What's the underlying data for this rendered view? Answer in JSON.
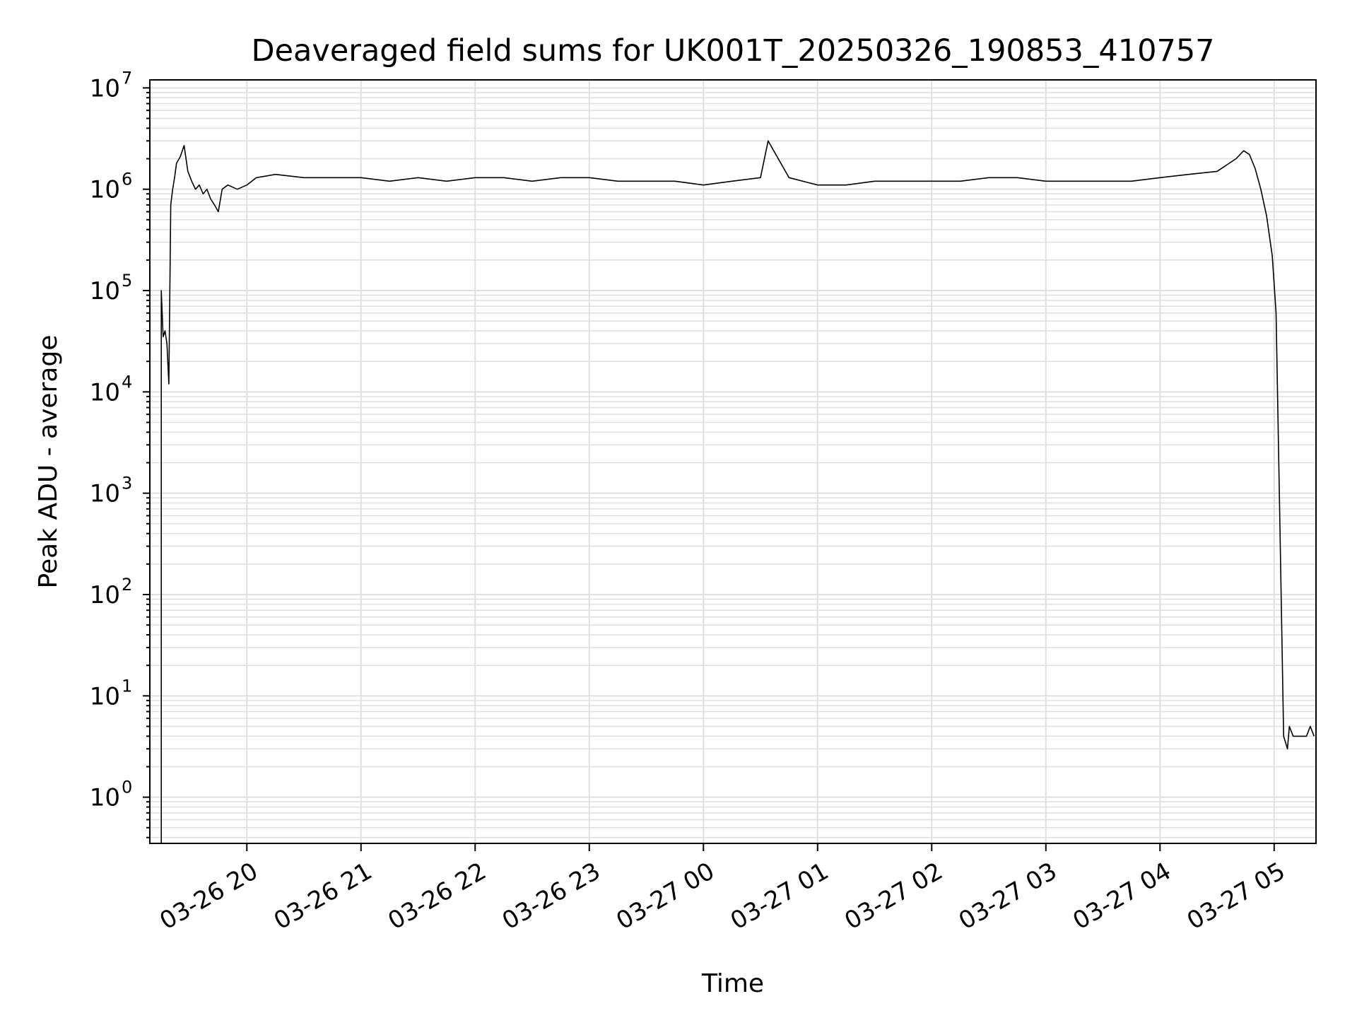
{
  "chart_data": {
    "type": "line",
    "title": "Deaveraged field sums for UK001T_20250326_190853_410757",
    "xlabel": "Time",
    "ylabel": "Peak ADU - average",
    "yscale": "log",
    "ylim": [
      0.35,
      12000000
    ],
    "xlim": [
      "2025-03-26 19:09",
      "2025-03-27 05:22"
    ],
    "grid": true,
    "line_color": "#000000",
    "grid_color": "#e0e0e0",
    "x_ticks": [
      {
        "value": "2025-03-26 20:00",
        "label": "03-26 20"
      },
      {
        "value": "2025-03-26 21:00",
        "label": "03-26 21"
      },
      {
        "value": "2025-03-26 22:00",
        "label": "03-26 22"
      },
      {
        "value": "2025-03-26 23:00",
        "label": "03-26 23"
      },
      {
        "value": "2025-03-27 00:00",
        "label": "03-27 00"
      },
      {
        "value": "2025-03-27 01:00",
        "label": "03-27 01"
      },
      {
        "value": "2025-03-27 02:00",
        "label": "03-27 02"
      },
      {
        "value": "2025-03-27 03:00",
        "label": "03-27 03"
      },
      {
        "value": "2025-03-27 04:00",
        "label": "03-27 04"
      },
      {
        "value": "2025-03-27 05:00",
        "label": "03-27 05"
      }
    ],
    "y_ticks": [
      {
        "value": 1,
        "base": "10",
        "exp": "0"
      },
      {
        "value": 10,
        "base": "10",
        "exp": "1"
      },
      {
        "value": 100,
        "base": "10",
        "exp": "2"
      },
      {
        "value": 1000,
        "base": "10",
        "exp": "3"
      },
      {
        "value": 10000,
        "base": "10",
        "exp": "4"
      },
      {
        "value": 100000,
        "base": "10",
        "exp": "5"
      },
      {
        "value": 1000000,
        "base": "10",
        "exp": "6"
      },
      {
        "value": 10000000,
        "base": "10",
        "exp": "7"
      }
    ],
    "series": [
      {
        "x": [
          "2025-03-26 19:15",
          "2025-03-26 19:15",
          "2025-03-26 19:16",
          "2025-03-26 19:17",
          "2025-03-26 19:18",
          "2025-03-26 19:19",
          "2025-03-26 19:20",
          "2025-03-26 19:21",
          "2025-03-26 19:22",
          "2025-03-26 19:23",
          "2025-03-26 19:25",
          "2025-03-26 19:27",
          "2025-03-26 19:29",
          "2025-03-26 19:31",
          "2025-03-26 19:33",
          "2025-03-26 19:35",
          "2025-03-26 19:37",
          "2025-03-26 19:39",
          "2025-03-26 19:41",
          "2025-03-26 19:43",
          "2025-03-26 19:45",
          "2025-03-26 19:47",
          "2025-03-26 19:50",
          "2025-03-26 19:55",
          "2025-03-26 20:00",
          "2025-03-26 20:05",
          "2025-03-26 20:15",
          "2025-03-26 20:30",
          "2025-03-26 20:45",
          "2025-03-26 21:00",
          "2025-03-26 21:15",
          "2025-03-26 21:30",
          "2025-03-26 21:45",
          "2025-03-26 22:00",
          "2025-03-26 22:15",
          "2025-03-26 22:30",
          "2025-03-26 22:45",
          "2025-03-26 23:00",
          "2025-03-26 23:15",
          "2025-03-26 23:30",
          "2025-03-26 23:45",
          "2025-03-27 00:00",
          "2025-03-27 00:15",
          "2025-03-27 00:30",
          "2025-03-27 00:34",
          "2025-03-27 00:45",
          "2025-03-27 01:00",
          "2025-03-27 01:15",
          "2025-03-27 01:30",
          "2025-03-27 01:45",
          "2025-03-27 02:00",
          "2025-03-27 02:15",
          "2025-03-27 02:30",
          "2025-03-27 02:45",
          "2025-03-27 03:00",
          "2025-03-27 03:15",
          "2025-03-27 03:30",
          "2025-03-27 03:45",
          "2025-03-27 04:00",
          "2025-03-27 04:15",
          "2025-03-27 04:30",
          "2025-03-27 04:40",
          "2025-03-27 04:44",
          "2025-03-27 04:47",
          "2025-03-27 04:50",
          "2025-03-27 04:53",
          "2025-03-27 04:56",
          "2025-03-27 04:59",
          "2025-03-27 05:01",
          "2025-03-27 05:03",
          "2025-03-27 05:05",
          "2025-03-27 05:07",
          "2025-03-27 05:08",
          "2025-03-27 05:10",
          "2025-03-27 05:12",
          "2025-03-27 05:14",
          "2025-03-27 05:15",
          "2025-03-27 05:17",
          "2025-03-27 05:19",
          "2025-03-27 05:21"
        ],
        "y": [
          0.35,
          100000,
          35000,
          40000,
          30000,
          12000,
          700000,
          1000000,
          1300000,
          1800000,
          2100000,
          2700000,
          1500000,
          1200000,
          1000000,
          1100000,
          900000,
          1000000,
          800000,
          700000,
          600000,
          1000000,
          1100000,
          1000000,
          1100000,
          1300000,
          1400000,
          1300000,
          1300000,
          1300000,
          1200000,
          1300000,
          1200000,
          1300000,
          1300000,
          1200000,
          1300000,
          1300000,
          1200000,
          1200000,
          1200000,
          1100000,
          1200000,
          1300000,
          3000000,
          1300000,
          1100000,
          1100000,
          1200000,
          1200000,
          1200000,
          1200000,
          1300000,
          1300000,
          1200000,
          1200000,
          1200000,
          1200000,
          1300000,
          1400000,
          1500000,
          2000000,
          2400000,
          2200000,
          1600000,
          1000000,
          550000,
          220000,
          60000,
          500,
          4,
          3,
          5,
          4,
          4,
          4,
          4,
          4,
          5,
          4
        ]
      }
    ]
  }
}
